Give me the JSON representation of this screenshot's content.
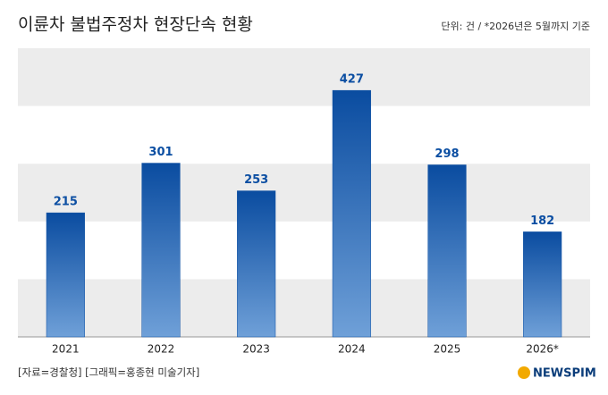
{
  "chart_data": {
    "type": "bar",
    "title": "이륜차 불법주정차 현장단속 현황",
    "subtitle": "단위: 건 / *2026년은 5월까지 기준",
    "categories": [
      "2021",
      "2022",
      "2023",
      "2024",
      "2025",
      "2026*"
    ],
    "values": [
      215,
      301,
      253,
      427,
      298,
      182
    ],
    "color": "#0b4ea2",
    "ylim": [
      0,
      500
    ],
    "yticks": [
      0,
      100,
      200,
      300,
      400,
      500
    ],
    "grid": "bands",
    "source": "[자료=경찰청] [그래픽=홍종현 미술기자]",
    "logo": "NEWSPIM"
  }
}
